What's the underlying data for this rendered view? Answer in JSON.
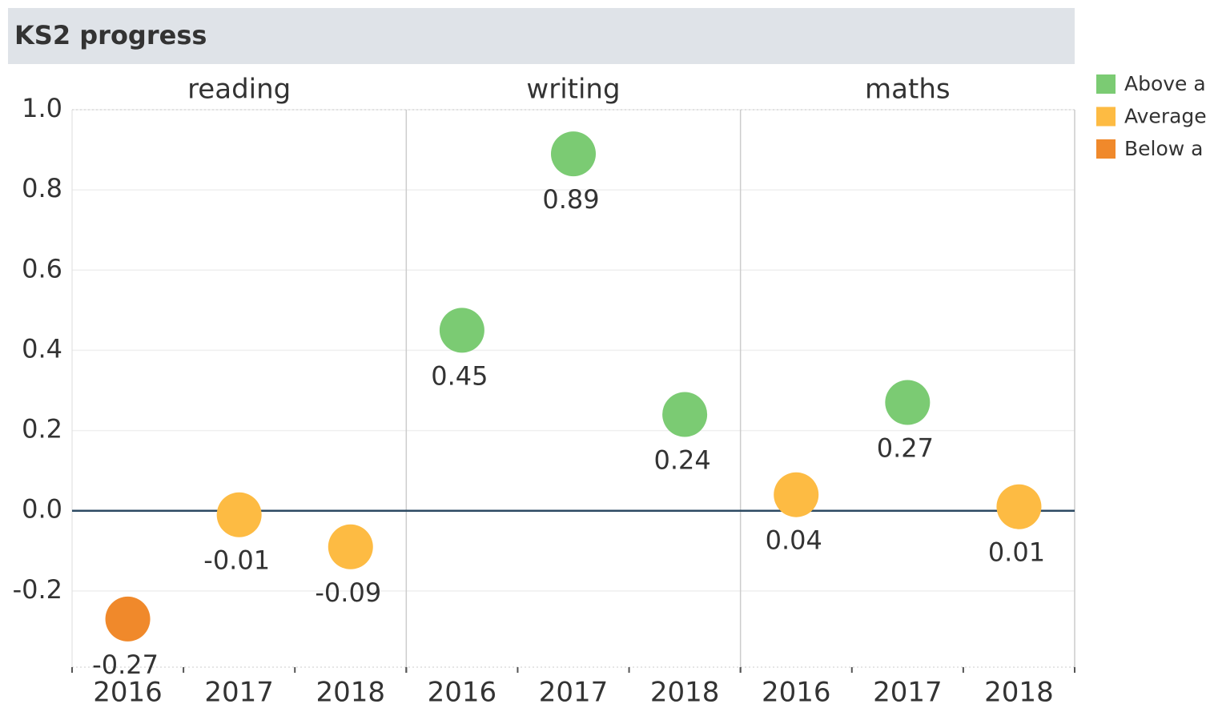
{
  "chart_data": {
    "type": "dot",
    "title": "KS2 progress",
    "ylim": [
      -0.39,
      1.0
    ],
    "yticks": [
      {
        "value": 1.0,
        "label": "1.0"
      },
      0.8,
      0.6,
      0.4,
      0.2,
      {
        "value": 0,
        "label": "0.0"
      },
      -0.2
    ],
    "grid": true,
    "legend": [
      {
        "name": "Above a",
        "color": "#7bcb73"
      },
      {
        "name": "Average",
        "color": "#fdbb43"
      },
      {
        "name": "Below a",
        "color": "#f0892b"
      }
    ],
    "panels": [
      {
        "name": "reading",
        "categories": [
          "2016",
          "2017",
          "2018"
        ],
        "values": [
          -0.27,
          -0.01,
          -0.09
        ],
        "colors": [
          "#f0892b",
          "#fdbb43",
          "#fdbb43"
        ]
      },
      {
        "name": "writing",
        "categories": [
          "2016",
          "2017",
          "2018"
        ],
        "values": [
          0.45,
          0.89,
          0.24
        ],
        "colors": [
          "#7bcb73",
          "#7bcb73",
          "#7bcb73"
        ]
      },
      {
        "name": "maths",
        "categories": [
          "2016",
          "2017",
          "2018"
        ],
        "values": [
          0.04,
          0.27,
          0.01
        ],
        "colors": [
          "#fdbb43",
          "#7bcb73",
          "#fdbb43"
        ]
      }
    ]
  }
}
